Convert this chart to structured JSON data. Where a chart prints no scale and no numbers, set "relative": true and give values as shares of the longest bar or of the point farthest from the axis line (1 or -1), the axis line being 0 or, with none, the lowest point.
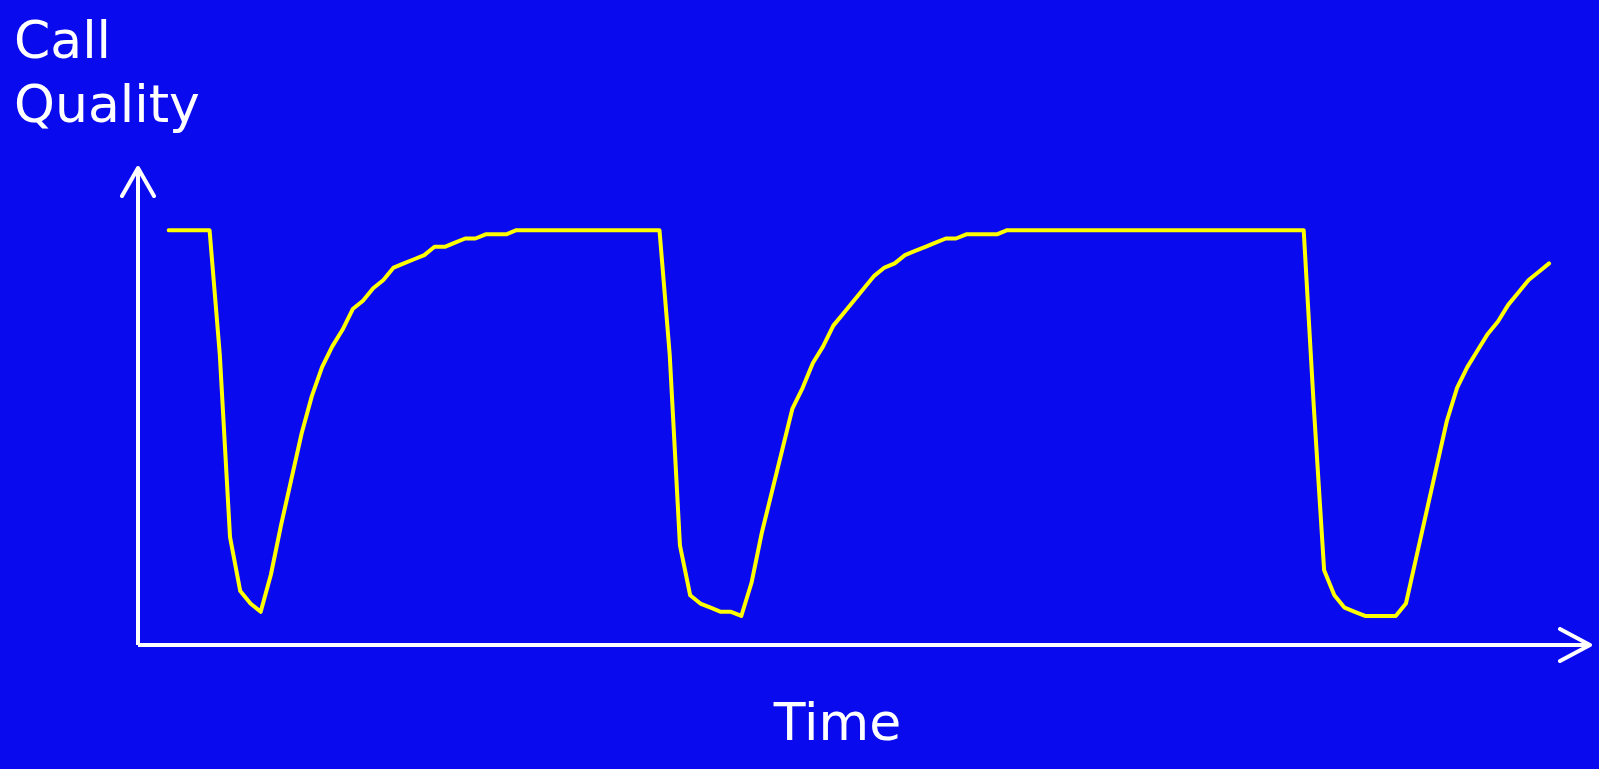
{
  "chart_data": {
    "type": "line",
    "relative": true,
    "ylabel": "Call Quality",
    "xlabel": "Time",
    "grid": false,
    "legend": false,
    "marker": "none",
    "line_style": "solid",
    "categories": [
      null,
      null,
      null,
      null,
      null,
      null,
      null,
      null,
      null,
      null,
      null,
      null,
      null,
      null,
      null,
      null,
      null,
      null,
      null,
      null,
      null,
      null,
      null,
      null,
      null,
      null,
      null,
      null,
      null,
      null,
      null,
      null,
      null,
      null,
      null,
      null,
      null,
      null,
      null,
      null,
      null,
      null,
      null,
      null,
      null,
      null,
      null,
      null,
      null,
      null,
      null,
      null,
      null,
      null,
      null,
      null,
      null,
      null,
      null,
      null,
      null,
      null,
      null,
      null,
      null,
      null,
      null,
      null,
      null,
      null,
      null,
      null,
      null,
      null,
      null,
      null,
      null,
      null,
      null,
      null,
      null,
      null,
      null,
      null,
      null,
      null,
      null,
      null,
      null,
      null,
      null,
      null,
      null,
      null,
      null,
      null,
      null,
      null,
      null,
      null,
      null,
      null,
      null,
      null,
      null,
      null,
      null,
      null,
      null,
      null,
      null,
      null,
      null,
      null,
      null,
      null,
      null,
      null,
      null,
      null,
      null,
      null,
      null,
      null,
      null,
      null,
      null,
      null,
      null,
      null,
      null,
      null,
      null,
      null,
      null,
      null
    ],
    "series": [
      {
        "color": "#ffff00",
        "values": [
          1,
          1,
          1,
          1,
          1,
          0.7,
          0.26,
          0.13,
          0.1,
          0.08,
          0.17,
          0.29,
          0.4,
          0.51,
          0.6,
          0.67,
          0.72,
          0.76,
          0.81,
          0.83,
          0.86,
          0.88,
          0.91,
          0.92,
          0.93,
          0.94,
          0.96,
          0.96,
          0.97,
          0.98,
          0.98,
          0.99,
          0.99,
          0.99,
          1,
          1,
          1,
          1,
          1,
          1,
          1,
          1,
          1,
          1,
          1,
          1,
          1,
          1,
          1,
          0.7,
          0.24,
          0.12,
          0.1,
          0.09,
          0.08,
          0.08,
          0.07,
          0.15,
          0.27,
          0.37,
          0.47,
          0.57,
          0.62,
          0.68,
          0.72,
          0.77,
          0.8,
          0.83,
          0.86,
          0.89,
          0.91,
          0.92,
          0.94,
          0.95,
          0.96,
          0.97,
          0.98,
          0.98,
          0.99,
          0.99,
          0.99,
          0.99,
          1.0,
          1,
          1,
          1,
          1,
          1,
          1,
          1,
          1,
          1,
          1,
          1,
          1,
          1,
          1,
          1,
          1,
          1,
          1,
          1,
          1,
          1,
          1,
          1,
          1,
          1,
          1,
          1,
          1,
          1,
          0.57,
          0.18,
          0.12,
          0.09,
          0.08,
          0.07,
          0.07,
          0.07,
          0.07,
          0.1,
          0.21,
          0.32,
          0.43,
          0.54,
          0.62,
          0.67,
          0.71,
          0.75,
          0.78,
          0.82,
          0.85,
          0.88,
          0.9,
          0.92
        ]
      }
    ]
  }
}
